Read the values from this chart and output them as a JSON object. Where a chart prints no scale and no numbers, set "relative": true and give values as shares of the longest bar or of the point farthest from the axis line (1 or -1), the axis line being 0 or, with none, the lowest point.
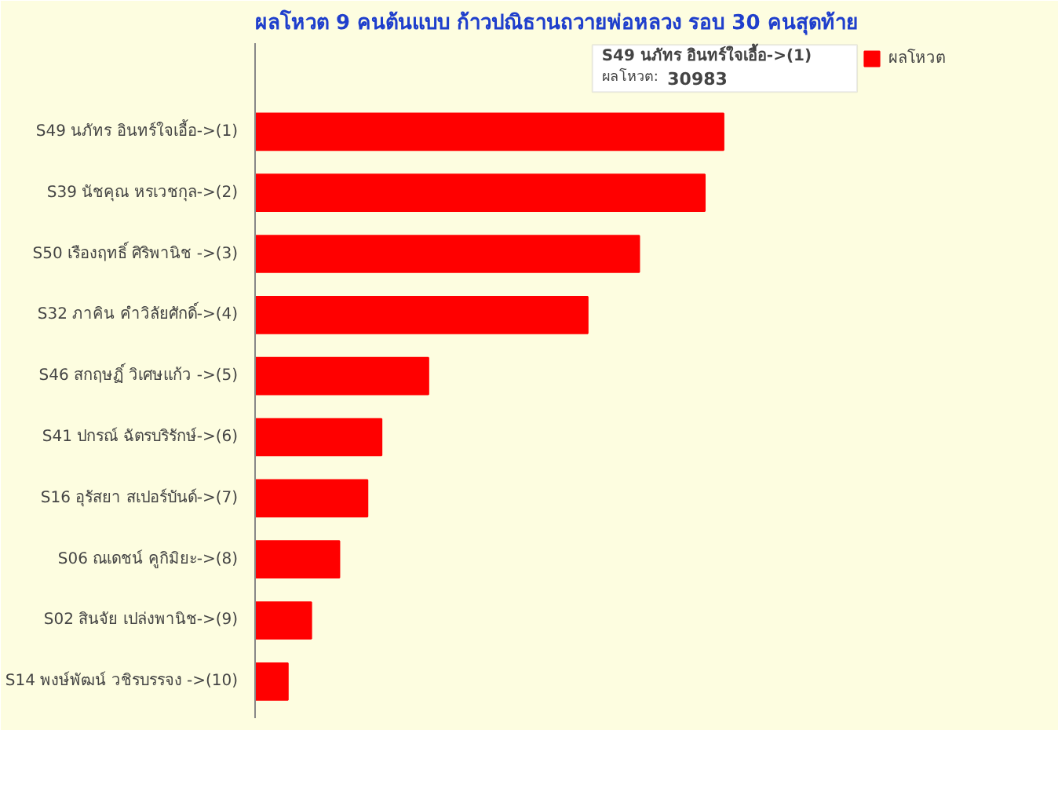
{
  "chart_data": {
    "type": "bar",
    "orientation": "horizontal",
    "relative": true,
    "title": "ผลโหวต 9 คนต้นแบบ ก้าวปณิธานถวายพ่อหลวง รอบ 30 คนสุดท้าย",
    "categories": [
      "S49 นภัทร อินทร์ใจเอื้อ->(1)",
      "S39 นัชคุณ หรเวชกุล->(2)",
      "S50 เรืองฤทธิ์ ศิริพานิช ->(3)",
      "S32 ภาคิน คำวิลัยศักดิ์->(4)",
      "S46 สกฤษฏิ์ วิเศษแก้ว ->(5)",
      "S41 ปกรณ์ ฉัตรบริรักษ์->(6)",
      "S16 อุรัสยา สเปอร์บันด์->(7)",
      "S06 ณเดชน์ คูกิมิยะ->(8)",
      "S02 สินจัย เปล่งพานิช->(9)",
      "S14 พงษ์พัฒน์ วชิรบรรจง ->(10)"
    ],
    "series": [
      {
        "name": "ผลโหวต",
        "color": "#ff0000",
        "values": [
          1,
          0.96,
          0.82,
          0.71,
          0.37,
          0.27,
          0.24,
          0.18,
          0.12,
          0.07
        ]
      }
    ],
    "legend": "right",
    "tick_labels": "y",
    "annotations": [
      "S49 นภัทร อินทร์ใจเอื้อ->(1)",
      "ผลโหวต:",
      "30983"
    ]
  }
}
